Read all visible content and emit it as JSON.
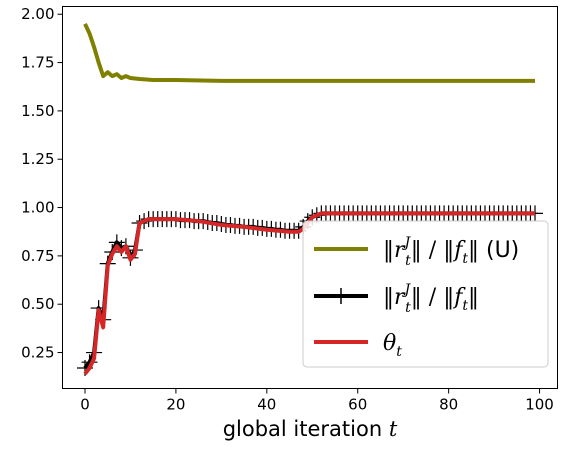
{
  "chart_data": {
    "type": "line",
    "title": "",
    "xlabel": "global iteration t",
    "ylabel": "",
    "xlim": [
      -4.95,
      103.95
    ],
    "ylim": [
      0.064,
      2.04
    ],
    "xticks": [
      "0",
      "20",
      "40",
      "60",
      "80",
      "100"
    ],
    "yticks": [
      "0.25",
      "0.50",
      "0.75",
      "1.00",
      "1.25",
      "1.50",
      "1.75",
      "2.00"
    ],
    "legend_placement": "lower-right",
    "grid": false,
    "series": [
      {
        "name": "‖r_t^J‖ / ‖f_t‖ (U)",
        "color": "#808000",
        "marker": "none",
        "points": [
          [
            0,
            1.95
          ],
          [
            1,
            1.9
          ],
          [
            2,
            1.83
          ],
          [
            3,
            1.75
          ],
          [
            4,
            1.68
          ],
          [
            5,
            1.7
          ],
          [
            6,
            1.68
          ],
          [
            7,
            1.69
          ],
          [
            8,
            1.67
          ],
          [
            9,
            1.68
          ],
          [
            10,
            1.67
          ],
          [
            12,
            1.665
          ],
          [
            15,
            1.66
          ],
          [
            20,
            1.66
          ],
          [
            30,
            1.655
          ],
          [
            40,
            1.655
          ],
          [
            60,
            1.655
          ],
          [
            80,
            1.655
          ],
          [
            99,
            1.655
          ]
        ]
      },
      {
        "name": "‖r_t^J‖ / ‖f_t‖",
        "color": "#000000",
        "marker": "+",
        "points": [
          [
            0,
            0.17
          ],
          [
            1,
            0.2
          ],
          [
            2,
            0.25
          ],
          [
            3,
            0.48
          ],
          [
            4,
            0.42
          ],
          [
            5,
            0.71
          ],
          [
            6,
            0.77
          ],
          [
            7,
            0.82
          ],
          [
            8,
            0.79
          ],
          [
            9,
            0.8
          ],
          [
            10,
            0.74
          ],
          [
            11,
            0.78
          ],
          [
            12,
            0.92
          ],
          [
            13,
            0.93
          ],
          [
            14,
            0.94
          ],
          [
            15,
            0.94
          ],
          [
            16,
            0.94
          ],
          [
            17,
            0.94
          ],
          [
            18,
            0.94
          ],
          [
            19,
            0.94
          ],
          [
            20,
            0.94
          ],
          [
            21,
            0.935
          ],
          [
            22,
            0.935
          ],
          [
            23,
            0.935
          ],
          [
            24,
            0.93
          ],
          [
            25,
            0.93
          ],
          [
            26,
            0.93
          ],
          [
            27,
            0.925
          ],
          [
            28,
            0.92
          ],
          [
            29,
            0.92
          ],
          [
            30,
            0.915
          ],
          [
            31,
            0.91
          ],
          [
            32,
            0.91
          ],
          [
            33,
            0.905
          ],
          [
            34,
            0.905
          ],
          [
            35,
            0.9
          ],
          [
            36,
            0.9
          ],
          [
            37,
            0.9
          ],
          [
            38,
            0.895
          ],
          [
            39,
            0.895
          ],
          [
            40,
            0.89
          ],
          [
            41,
            0.89
          ],
          [
            42,
            0.885
          ],
          [
            43,
            0.885
          ],
          [
            44,
            0.88
          ],
          [
            45,
            0.88
          ],
          [
            46,
            0.88
          ],
          [
            47,
            0.88
          ],
          [
            48,
            0.9
          ],
          [
            49,
            0.93
          ],
          [
            50,
            0.95
          ],
          [
            51,
            0.96
          ],
          [
            52,
            0.97
          ],
          [
            53,
            0.97
          ],
          [
            54,
            0.97
          ],
          [
            55,
            0.97
          ],
          [
            56,
            0.97
          ],
          [
            57,
            0.97
          ],
          [
            58,
            0.97
          ],
          [
            59,
            0.97
          ],
          [
            60,
            0.97
          ],
          [
            61,
            0.97
          ],
          [
            62,
            0.97
          ],
          [
            63,
            0.97
          ],
          [
            64,
            0.97
          ],
          [
            65,
            0.97
          ],
          [
            66,
            0.97
          ],
          [
            67,
            0.97
          ],
          [
            68,
            0.97
          ],
          [
            69,
            0.97
          ],
          [
            70,
            0.97
          ],
          [
            71,
            0.97
          ],
          [
            72,
            0.97
          ],
          [
            73,
            0.97
          ],
          [
            74,
            0.97
          ],
          [
            75,
            0.97
          ],
          [
            76,
            0.97
          ],
          [
            77,
            0.97
          ],
          [
            78,
            0.97
          ],
          [
            79,
            0.97
          ],
          [
            80,
            0.97
          ],
          [
            81,
            0.97
          ],
          [
            82,
            0.97
          ],
          [
            83,
            0.97
          ],
          [
            84,
            0.97
          ],
          [
            85,
            0.97
          ],
          [
            86,
            0.97
          ],
          [
            87,
            0.97
          ],
          [
            88,
            0.97
          ],
          [
            89,
            0.97
          ],
          [
            90,
            0.97
          ],
          [
            91,
            0.97
          ],
          [
            92,
            0.97
          ],
          [
            93,
            0.97
          ],
          [
            94,
            0.97
          ],
          [
            95,
            0.97
          ],
          [
            96,
            0.97
          ],
          [
            97,
            0.97
          ],
          [
            98,
            0.97
          ],
          [
            99,
            0.97
          ]
        ]
      },
      {
        "name": "θ_t",
        "color": "#d62728",
        "marker": "none",
        "points": [
          [
            0,
            0.14
          ],
          [
            1,
            0.17
          ],
          [
            2,
            0.22
          ],
          [
            3,
            0.47
          ],
          [
            4,
            0.38
          ],
          [
            5,
            0.7
          ],
          [
            6,
            0.76
          ],
          [
            7,
            0.8
          ],
          [
            8,
            0.77
          ],
          [
            9,
            0.8
          ],
          [
            10,
            0.73
          ],
          [
            11,
            0.76
          ],
          [
            12,
            0.92
          ],
          [
            13,
            0.93
          ],
          [
            14,
            0.94
          ],
          [
            15,
            0.94
          ],
          [
            20,
            0.94
          ],
          [
            25,
            0.93
          ],
          [
            30,
            0.91
          ],
          [
            35,
            0.9
          ],
          [
            40,
            0.885
          ],
          [
            45,
            0.875
          ],
          [
            47,
            0.875
          ],
          [
            48,
            0.89
          ],
          [
            49,
            0.92
          ],
          [
            50,
            0.95
          ],
          [
            52,
            0.97
          ],
          [
            60,
            0.97
          ],
          [
            80,
            0.97
          ],
          [
            99,
            0.97
          ]
        ]
      }
    ]
  },
  "legend": {
    "entry_u": {
      "norm": "‖",
      "r": "r",
      "sup": "J",
      "sub": "t",
      "mid": "‖ / ‖",
      "f": "f",
      "fsub": "t",
      "end": "‖",
      "suffix": " (U)"
    },
    "entry_plain": {
      "norm": "‖",
      "r": "r",
      "sup": "J",
      "sub": "t",
      "mid": "‖ / ‖",
      "f": "f",
      "fsub": "t",
      "end": "‖"
    },
    "entry_theta": {
      "sym": "θ",
      "sub": "t"
    }
  }
}
